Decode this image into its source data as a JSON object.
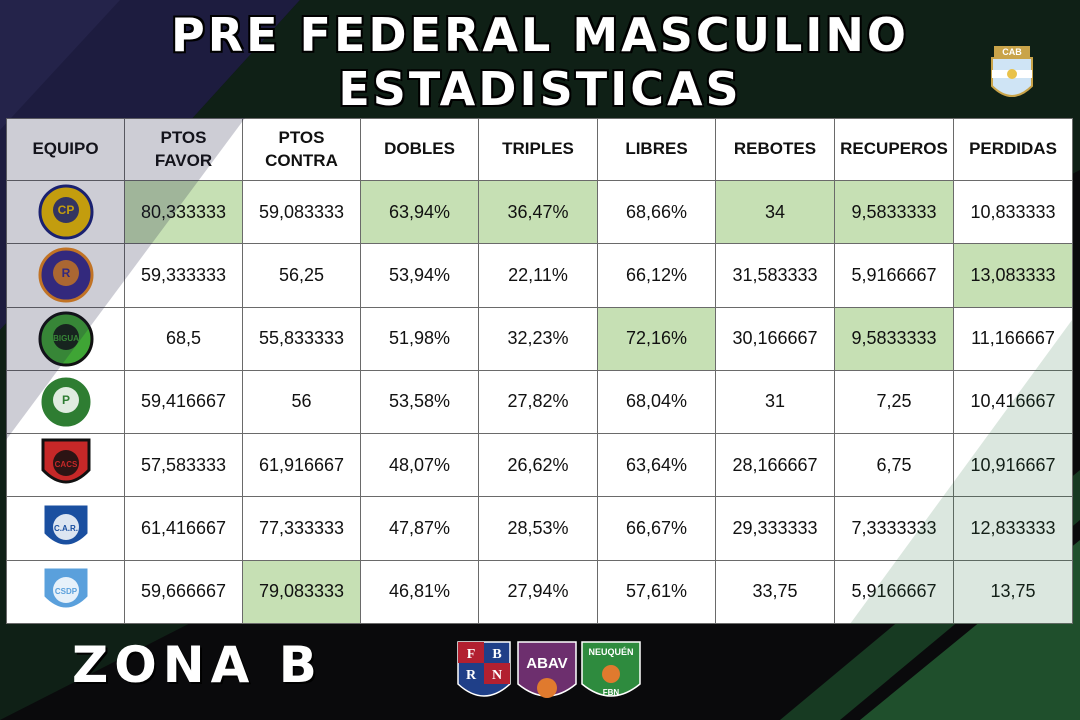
{
  "title_line1": "PRE FEDERAL MASCULINO",
  "title_line2": "ESTADISTICAS",
  "cab_logo_text": "CAB",
  "zona": "ZONA B",
  "headers": {
    "equipo": "EQUIPO",
    "ptos_favor_l1": "PTOS",
    "ptos_favor_l2": "FAVOR",
    "ptos_contra_l1": "PTOS",
    "ptos_contra_l2": "CONTRA",
    "dobles": "DOBLES",
    "triples": "TRIPLES",
    "libres": "LIBRES",
    "rebotes": "REBOTES",
    "recuperos": "RECUPEROS",
    "perdidas": "PERDIDAS"
  },
  "rows": [
    {
      "logo": "club-del-progreso-logo",
      "logo_text": "CP",
      "ptos_favor": "80,333333",
      "ptos_contra": "59,083333",
      "dobles": "63,94%",
      "triples": "36,47%",
      "libres": "68,66%",
      "rebotes": "34",
      "recuperos": "9,5833333",
      "perdidas": "10,833333"
    },
    {
      "logo": "club-general-roca-logo",
      "logo_text": "R",
      "ptos_favor": "59,333333",
      "ptos_contra": "56,25",
      "dobles": "53,94%",
      "triples": "22,11%",
      "libres": "66,12%",
      "rebotes": "31,583333",
      "recuperos": "5,9166667",
      "perdidas": "13,083333"
    },
    {
      "logo": "bigua-logo",
      "logo_text": "BIGUA",
      "ptos_favor": "68,5",
      "ptos_contra": "55,833333",
      "dobles": "51,98%",
      "triples": "32,23%",
      "libres": "72,16%",
      "rebotes": "30,166667",
      "recuperos": "9,5833333",
      "perdidas": "11,166667"
    },
    {
      "logo": "club-p-logo",
      "logo_text": "P",
      "ptos_favor": "59,416667",
      "ptos_contra": "56",
      "dobles": "53,58%",
      "triples": "27,82%",
      "libres": "68,04%",
      "rebotes": "31",
      "recuperos": "7,25",
      "perdidas": "10,416667"
    },
    {
      "logo": "cacs-logo",
      "logo_text": "CACS",
      "ptos_favor": "57,583333",
      "ptos_contra": "61,916667",
      "dobles": "48,07%",
      "triples": "26,62%",
      "libres": "63,64%",
      "rebotes": "28,166667",
      "recuperos": "6,75",
      "perdidas": "10,916667"
    },
    {
      "logo": "regina-logo",
      "logo_text": "C.A.R.",
      "ptos_favor": "61,416667",
      "ptos_contra": "77,333333",
      "dobles": "47,87%",
      "triples": "28,53%",
      "libres": "66,67%",
      "rebotes": "29,333333",
      "recuperos": "7,3333333",
      "perdidas": "12,833333"
    },
    {
      "logo": "csdp-logo",
      "logo_text": "CSDP",
      "ptos_favor": "59,666667",
      "ptos_contra": "79,083333",
      "dobles": "46,81%",
      "triples": "27,94%",
      "libres": "57,61%",
      "rebotes": "33,75",
      "recuperos": "5,9166667",
      "perdidas": "13,75"
    }
  ],
  "highlighted": [
    [
      "ptos_favor",
      "dobles",
      "triples",
      "rebotes",
      "recuperos"
    ],
    [
      "perdidas"
    ],
    [
      "libres",
      "recuperos"
    ],
    [],
    [],
    [],
    [
      "ptos_contra"
    ]
  ],
  "sponsors": {
    "fbrn_letters": [
      "F",
      "B",
      "R",
      "N"
    ],
    "abav": "ABAV",
    "neuquen": "NEUQUÉN",
    "fbn": "FBN"
  },
  "colors": {
    "highlight": "#c6e0b4",
    "background": "#0a0a0c",
    "dark_navy": "#1b1a3a",
    "green": "#1f4f2c"
  }
}
